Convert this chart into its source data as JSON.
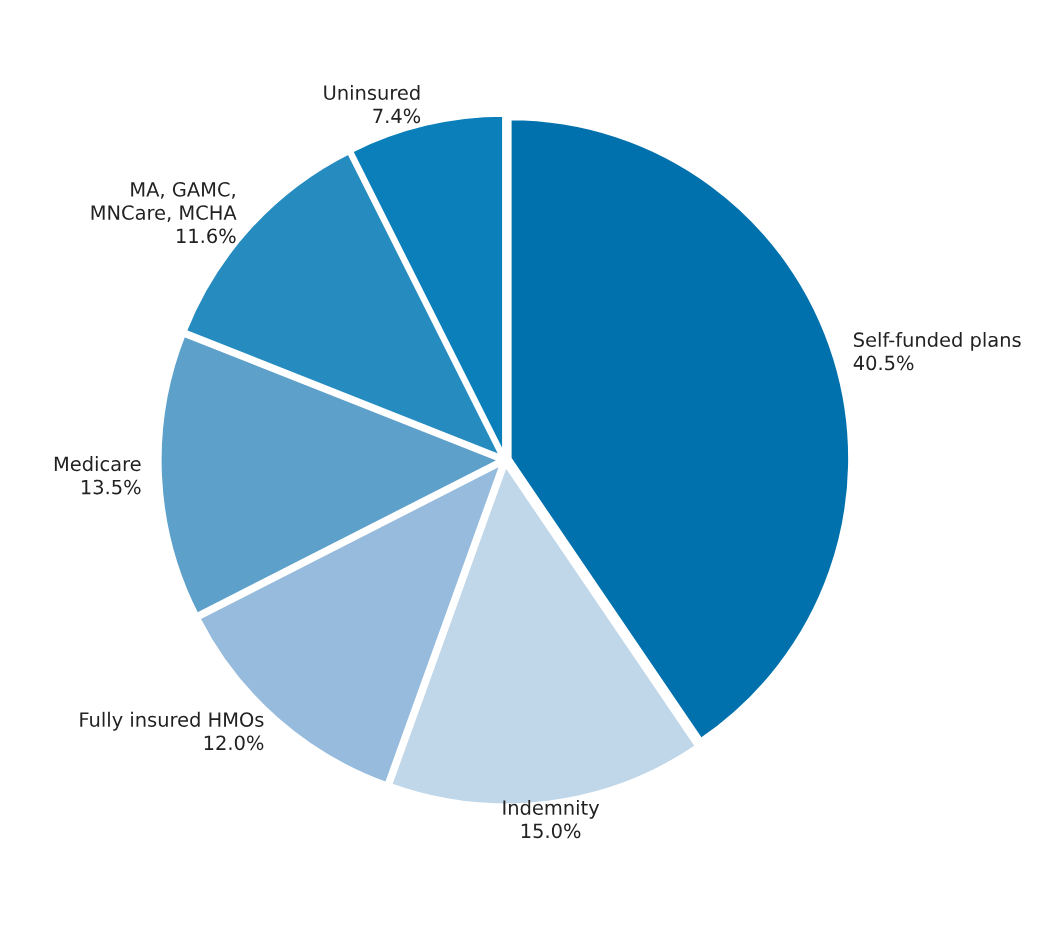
{
  "chart_data": {
    "type": "pie",
    "categories": [
      "Self-funded plans",
      "Indemnity",
      "Fully insured HMOs",
      "Medicare",
      "MA, GAMC,\nMNCare, MCHA",
      "Uninsured"
    ],
    "values": [
      40.5,
      15.0,
      12.0,
      13.5,
      11.6,
      7.4
    ],
    "value_labels": [
      "40.5%",
      "15.0%",
      "12.0%",
      "13.5%",
      "11.6%",
      "7.4%"
    ],
    "colors": [
      "#0071ad",
      "#c0d7e9",
      "#97bbdc",
      "#5da0ca",
      "#268cc0",
      "#0a7fb9"
    ]
  }
}
